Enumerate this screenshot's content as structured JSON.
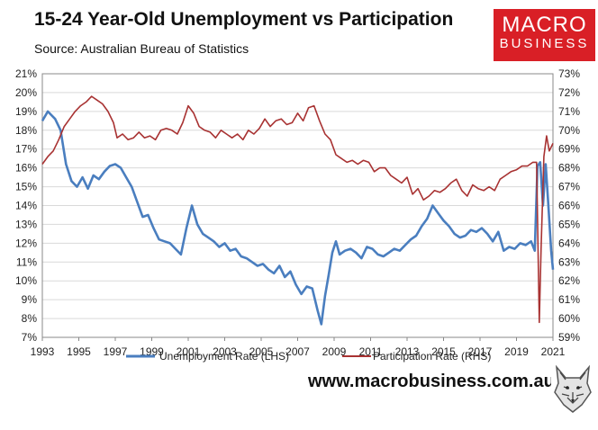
{
  "header": {
    "title": "15-24 Year-Old Unemployment vs Participation",
    "source": "Source: Australian Bureau of Statistics"
  },
  "logo": {
    "line1": "MACRO",
    "line2": "BUSINESS",
    "color": "#d91f26"
  },
  "footer": {
    "website": "www.macrobusiness.com.au",
    "mascot_icon": "wolf-icon"
  },
  "chart_data": {
    "type": "line",
    "title": "15-24 Year-Old Unemployment vs Participation",
    "x_ticks": [
      "1993",
      "1995",
      "1997",
      "1999",
      "2001",
      "2003",
      "2005",
      "2007",
      "2009",
      "2011",
      "2013",
      "2015",
      "2017",
      "2019",
      "2021"
    ],
    "xlim": [
      1993,
      2021
    ],
    "left_axis": {
      "ylim": [
        7,
        21
      ],
      "ticks": [
        "7%",
        "8%",
        "9%",
        "10%",
        "11%",
        "12%",
        "13%",
        "14%",
        "15%",
        "16%",
        "17%",
        "18%",
        "19%",
        "20%",
        "21%"
      ]
    },
    "right_axis": {
      "ylim": [
        59,
        73
      ],
      "ticks": [
        "59%",
        "60%",
        "61%",
        "62%",
        "63%",
        "64%",
        "65%",
        "66%",
        "67%",
        "68%",
        "69%",
        "70%",
        "71%",
        "72%",
        "73%"
      ]
    },
    "grid": "horizontal",
    "legend_position": "bottom",
    "series": [
      {
        "name": "Unemployment Rate (LHS)",
        "axis": "left",
        "color": "#4a7ebf",
        "x": [
          1993.0,
          1993.3,
          1993.7,
          1994.0,
          1994.3,
          1994.6,
          1994.9,
          1995.2,
          1995.5,
          1995.8,
          1996.1,
          1996.4,
          1996.7,
          1997.0,
          1997.3,
          1997.6,
          1997.9,
          1998.2,
          1998.5,
          1998.8,
          1999.1,
          1999.4,
          1999.7,
          2000.0,
          2000.3,
          2000.6,
          2000.9,
          2001.2,
          2001.5,
          2001.8,
          2002.1,
          2002.4,
          2002.7,
          2003.0,
          2003.3,
          2003.6,
          2003.9,
          2004.2,
          2004.5,
          2004.8,
          2005.1,
          2005.4,
          2005.7,
          2006.0,
          2006.3,
          2006.6,
          2006.9,
          2007.2,
          2007.5,
          2007.8,
          2008.1,
          2008.3,
          2008.5,
          2008.7,
          2008.9,
          2009.1,
          2009.3,
          2009.6,
          2009.9,
          2010.2,
          2010.5,
          2010.8,
          2011.1,
          2011.4,
          2011.7,
          2012.0,
          2012.3,
          2012.6,
          2012.9,
          2013.2,
          2013.5,
          2013.8,
          2014.1,
          2014.4,
          2014.7,
          2015.0,
          2015.3,
          2015.6,
          2015.9,
          2016.2,
          2016.5,
          2016.8,
          2017.1,
          2017.4,
          2017.7,
          2018.0,
          2018.3,
          2018.6,
          2018.9,
          2019.2,
          2019.5,
          2019.8,
          2020.0,
          2020.15,
          2020.3,
          2020.45,
          2020.6,
          2020.75,
          2020.9,
          2021.0
        ],
        "values": [
          18.5,
          19.0,
          18.6,
          18.0,
          16.2,
          15.3,
          15.0,
          15.5,
          14.9,
          15.6,
          15.4,
          15.8,
          16.1,
          16.2,
          16.0,
          15.5,
          15.0,
          14.2,
          13.4,
          13.5,
          12.8,
          12.2,
          12.1,
          12.0,
          11.7,
          11.4,
          12.8,
          14.0,
          13.0,
          12.5,
          12.3,
          12.1,
          11.8,
          12.0,
          11.6,
          11.7,
          11.3,
          11.2,
          11.0,
          10.8,
          10.9,
          10.6,
          10.4,
          10.8,
          10.2,
          10.5,
          9.8,
          9.3,
          9.7,
          9.6,
          8.4,
          7.7,
          9.2,
          10.3,
          11.5,
          12.1,
          11.4,
          11.6,
          11.7,
          11.5,
          11.2,
          11.8,
          11.7,
          11.4,
          11.3,
          11.5,
          11.7,
          11.6,
          11.9,
          12.2,
          12.4,
          12.9,
          13.3,
          14.0,
          13.6,
          13.2,
          12.9,
          12.5,
          12.3,
          12.4,
          12.7,
          12.6,
          12.8,
          12.5,
          12.1,
          12.6,
          11.6,
          11.8,
          11.7,
          12.0,
          11.9,
          12.1,
          11.6,
          16.1,
          16.3,
          14.0,
          16.2,
          14.0,
          11.6,
          10.6
        ]
      },
      {
        "name": "Participation Rate (RHS)",
        "axis": "right",
        "color": "#a83232",
        "x": [
          1993.0,
          1993.3,
          1993.6,
          1993.9,
          1994.2,
          1994.5,
          1994.8,
          1995.1,
          1995.4,
          1995.7,
          1996.0,
          1996.3,
          1996.6,
          1996.9,
          1997.1,
          1997.4,
          1997.7,
          1998.0,
          1998.3,
          1998.6,
          1998.9,
          1999.2,
          1999.5,
          1999.8,
          2000.1,
          2000.4,
          2000.7,
          2001.0,
          2001.3,
          2001.6,
          2001.9,
          2002.2,
          2002.5,
          2002.8,
          2003.1,
          2003.4,
          2003.7,
          2004.0,
          2004.3,
          2004.6,
          2004.9,
          2005.2,
          2005.5,
          2005.8,
          2006.1,
          2006.4,
          2006.7,
          2007.0,
          2007.3,
          2007.6,
          2007.9,
          2008.2,
          2008.5,
          2008.8,
          2009.1,
          2009.4,
          2009.7,
          2010.0,
          2010.3,
          2010.6,
          2010.9,
          2011.2,
          2011.5,
          2011.8,
          2012.1,
          2012.4,
          2012.7,
          2013.0,
          2013.3,
          2013.6,
          2013.9,
          2014.2,
          2014.5,
          2014.8,
          2015.1,
          2015.4,
          2015.7,
          2016.0,
          2016.3,
          2016.6,
          2016.9,
          2017.2,
          2017.5,
          2017.8,
          2018.1,
          2018.4,
          2018.7,
          2019.0,
          2019.3,
          2019.6,
          2019.9,
          2020.1,
          2020.25,
          2020.35,
          2020.5,
          2020.65,
          2020.8,
          2021.0
        ],
        "values": [
          68.2,
          68.6,
          68.9,
          69.5,
          70.2,
          70.6,
          71.0,
          71.3,
          71.5,
          71.8,
          71.6,
          71.4,
          71.0,
          70.4,
          69.6,
          69.8,
          69.5,
          69.6,
          69.9,
          69.6,
          69.7,
          69.5,
          70.0,
          70.1,
          70.0,
          69.8,
          70.4,
          71.3,
          70.9,
          70.2,
          70.0,
          69.9,
          69.6,
          70.0,
          69.8,
          69.6,
          69.8,
          69.5,
          70.0,
          69.8,
          70.1,
          70.6,
          70.2,
          70.5,
          70.6,
          70.3,
          70.4,
          70.9,
          70.5,
          71.2,
          71.3,
          70.5,
          69.8,
          69.5,
          68.7,
          68.5,
          68.3,
          68.4,
          68.2,
          68.4,
          68.3,
          67.8,
          68.0,
          68.0,
          67.6,
          67.4,
          67.2,
          67.5,
          66.6,
          66.9,
          66.3,
          66.5,
          66.8,
          66.7,
          66.9,
          67.2,
          67.4,
          66.8,
          66.5,
          67.1,
          66.9,
          66.8,
          67.0,
          66.8,
          67.4,
          67.6,
          67.8,
          67.9,
          68.1,
          68.1,
          68.3,
          68.3,
          59.8,
          63.7,
          68.6,
          69.7,
          68.9,
          69.3
        ]
      }
    ]
  }
}
